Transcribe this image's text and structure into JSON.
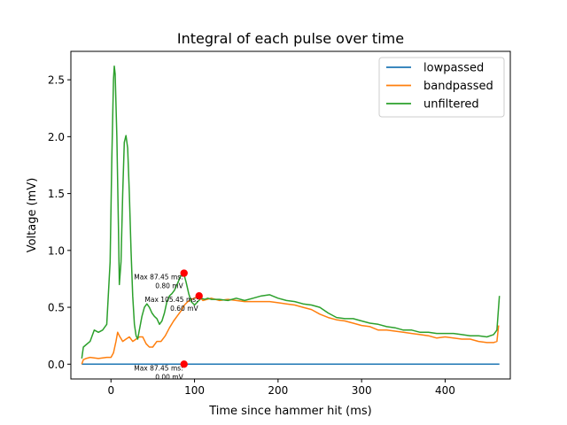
{
  "chart_data": {
    "type": "line",
    "title": "Integral of each pulse over time",
    "xlabel": "Time since hammer hit (ms)",
    "ylabel": "Voltage (mV)",
    "xlim": [
      -48,
      478
    ],
    "ylim": [
      -0.13,
      2.75
    ],
    "xticks": [
      0,
      100,
      200,
      300,
      400
    ],
    "yticks": [
      0.0,
      0.5,
      1.0,
      1.5,
      2.0,
      2.5
    ],
    "xtick_labels": [
      "0",
      "100",
      "200",
      "300",
      "400"
    ],
    "ytick_labels": [
      "0.0",
      "0.5",
      "1.0",
      "1.5",
      "2.0",
      "2.5"
    ],
    "grid": false,
    "legend_position": "top-right",
    "series": [
      {
        "name": "lowpassed",
        "color": "#1f77b4",
        "x": [
          -35,
          465
        ],
        "y": [
          0.0,
          0.0
        ]
      },
      {
        "name": "bandpassed",
        "color": "#ff7f0e",
        "x": [
          -35,
          -33,
          -30,
          -25,
          -15,
          -5,
          0,
          3,
          6,
          8,
          10,
          14,
          18,
          22,
          26,
          30,
          34,
          38,
          42,
          46,
          50,
          55,
          60,
          65,
          70,
          75,
          80,
          84,
          88,
          92,
          96,
          100,
          105,
          110,
          115,
          120,
          130,
          140,
          150,
          160,
          170,
          180,
          190,
          200,
          210,
          220,
          230,
          240,
          250,
          260,
          270,
          280,
          290,
          300,
          310,
          320,
          330,
          340,
          350,
          360,
          370,
          380,
          390,
          400,
          410,
          420,
          430,
          440,
          450,
          458,
          462,
          464
        ],
        "y": [
          0.0,
          0.04,
          0.05,
          0.06,
          0.05,
          0.06,
          0.06,
          0.1,
          0.2,
          0.28,
          0.25,
          0.2,
          0.22,
          0.24,
          0.2,
          0.22,
          0.24,
          0.24,
          0.18,
          0.15,
          0.15,
          0.2,
          0.2,
          0.25,
          0.32,
          0.38,
          0.43,
          0.47,
          0.52,
          0.55,
          0.57,
          0.58,
          0.6,
          0.56,
          0.57,
          0.58,
          0.56,
          0.57,
          0.56,
          0.55,
          0.55,
          0.55,
          0.55,
          0.54,
          0.53,
          0.52,
          0.5,
          0.48,
          0.44,
          0.41,
          0.39,
          0.38,
          0.36,
          0.34,
          0.33,
          0.3,
          0.3,
          0.29,
          0.28,
          0.27,
          0.26,
          0.25,
          0.23,
          0.24,
          0.23,
          0.22,
          0.22,
          0.2,
          0.19,
          0.19,
          0.2,
          0.34
        ]
      },
      {
        "name": "unfiltered",
        "color": "#2ca02c",
        "x": [
          -35,
          -33,
          -30,
          -25,
          -20,
          -15,
          -10,
          -5,
          -1,
          1,
          3,
          4,
          5,
          7,
          9,
          10,
          12,
          14,
          16,
          18,
          20,
          22,
          24,
          26,
          28,
          30,
          32,
          34,
          37,
          40,
          43,
          46,
          49,
          52,
          55,
          58,
          61,
          64,
          67,
          70,
          73,
          76,
          79,
          82,
          85,
          87,
          90,
          93,
          96,
          100,
          104,
          108,
          112,
          116,
          120,
          130,
          140,
          150,
          160,
          170,
          180,
          190,
          200,
          210,
          220,
          230,
          240,
          250,
          260,
          270,
          280,
          290,
          300,
          310,
          320,
          330,
          340,
          350,
          360,
          370,
          380,
          390,
          400,
          410,
          420,
          430,
          440,
          450,
          458,
          462,
          465
        ],
        "y": [
          0.05,
          0.15,
          0.17,
          0.2,
          0.3,
          0.28,
          0.3,
          0.35,
          0.9,
          1.8,
          2.5,
          2.62,
          2.55,
          2.0,
          1.2,
          0.7,
          0.9,
          1.5,
          1.95,
          2.01,
          1.9,
          1.5,
          1.0,
          0.6,
          0.35,
          0.25,
          0.22,
          0.3,
          0.42,
          0.5,
          0.53,
          0.5,
          0.45,
          0.42,
          0.4,
          0.35,
          0.38,
          0.45,
          0.55,
          0.6,
          0.62,
          0.65,
          0.7,
          0.75,
          0.8,
          0.8,
          0.72,
          0.62,
          0.55,
          0.52,
          0.55,
          0.58,
          0.57,
          0.58,
          0.57,
          0.57,
          0.56,
          0.58,
          0.56,
          0.58,
          0.6,
          0.61,
          0.58,
          0.56,
          0.55,
          0.53,
          0.52,
          0.5,
          0.45,
          0.41,
          0.4,
          0.4,
          0.38,
          0.36,
          0.35,
          0.33,
          0.32,
          0.3,
          0.3,
          0.28,
          0.28,
          0.27,
          0.27,
          0.27,
          0.26,
          0.25,
          0.25,
          0.24,
          0.26,
          0.3,
          0.6
        ]
      }
    ],
    "markers": [
      {
        "x": 87.45,
        "y": 0.8,
        "color": "#ff0000",
        "label_line1": "Max 87.45 ms:",
        "label_line2": "0.80 mV"
      },
      {
        "x": 105.45,
        "y": 0.6,
        "color": "#ff0000",
        "label_line1": "Max 105.45 ms:",
        "label_line2": "0.60 mV"
      },
      {
        "x": 87.45,
        "y": 0.0,
        "color": "#ff0000",
        "label_line1": "Max 87.45 ms:",
        "label_line2": "0.00 mV"
      }
    ]
  }
}
